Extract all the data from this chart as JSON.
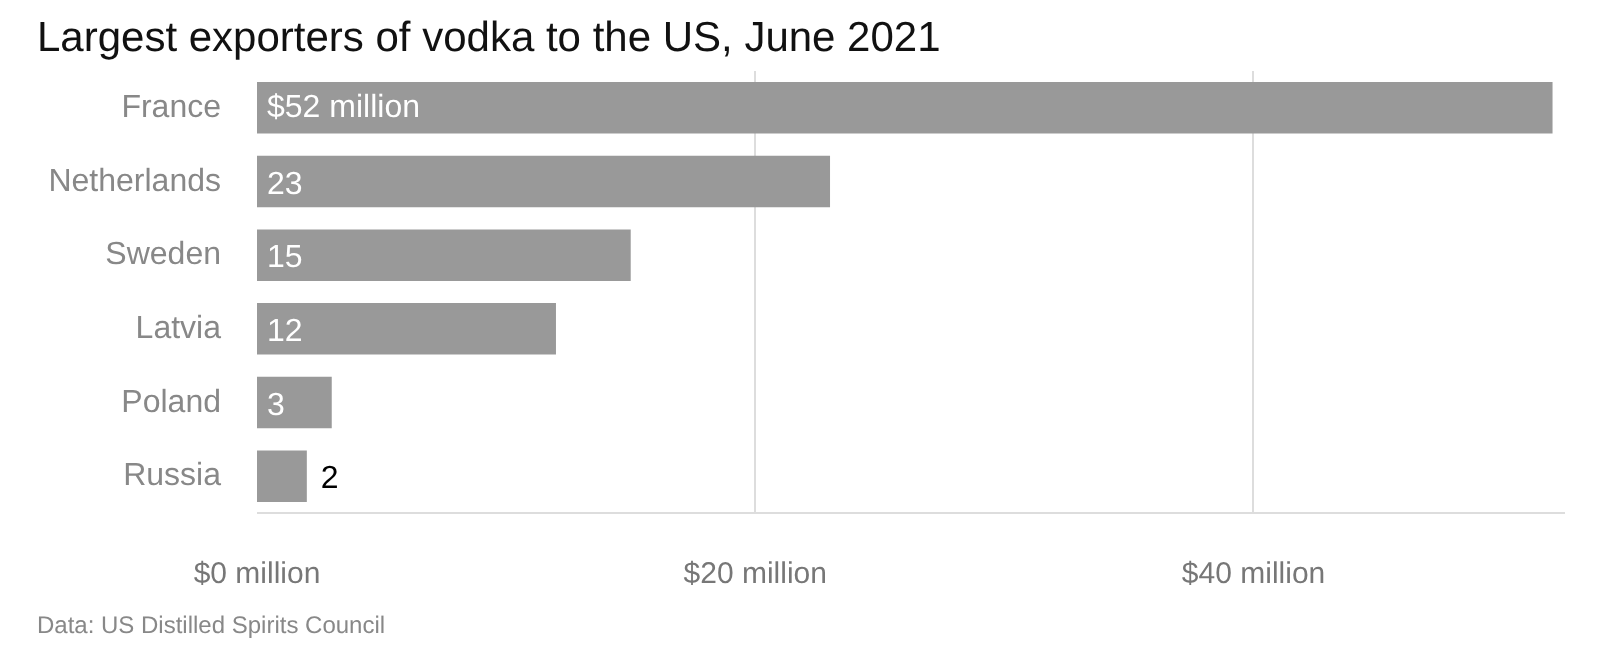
{
  "chart_data": {
    "type": "bar",
    "orientation": "horizontal",
    "title": "Largest exporters of vodka to the US, June 2021",
    "categories": [
      "France",
      "Netherlands",
      "Sweden",
      "Latvia",
      "Poland",
      "Russia"
    ],
    "values": [
      52,
      23,
      15,
      12,
      3,
      2
    ],
    "value_labels": [
      "$52 million",
      "23",
      "15",
      "12",
      "3",
      "2"
    ],
    "color": "#999999",
    "xlim": [
      0,
      52.5
    ],
    "xticks": [
      {
        "value": 0,
        "label": "$0 million"
      },
      {
        "value": 20,
        "label": "$20 million"
      },
      {
        "value": 40,
        "label": "$40 million"
      }
    ],
    "grid": "x",
    "annotations": [
      "Data: US Distilled Spirits Council"
    ]
  }
}
